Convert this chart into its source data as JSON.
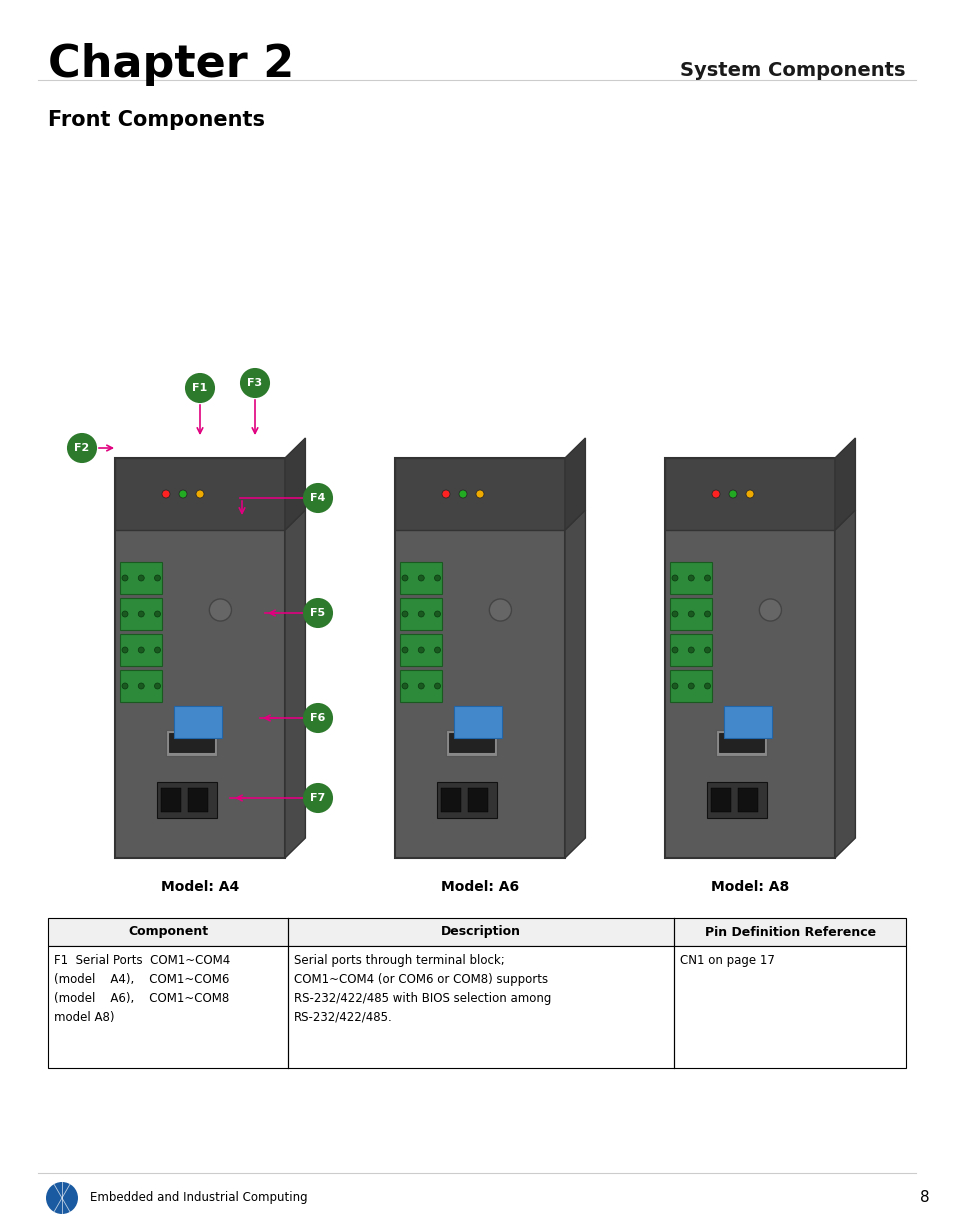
{
  "page_title": "Chapter 2",
  "page_subtitle": "System Components",
  "section_title": "Front Components",
  "bg_color": "#ffffff",
  "title_color": "#000000",
  "subtitle_color": "#1a1a1a",
  "section_color": "#000000",
  "label_bg_color": "#2d7a2d",
  "label_text_color": "#ffffff",
  "arrow_color": "#e0007f",
  "labels": [
    "F1",
    "F2",
    "F3",
    "F4",
    "F5",
    "F6",
    "F7"
  ],
  "model_labels": [
    "Model: A4",
    "Model: A6",
    "Model: A8"
  ],
  "table_header": [
    "Component",
    "Description",
    "Pin Definition Reference"
  ],
  "table_rows": [
    [
      "F1  Serial Ports  COM1~COM4\n(model    A4),    COM1~COM6\n(model    A6),    COM1~COM8\nmodel A8)",
      "Serial ports through terminal block;\nCOM1~COM4 (or COM6 or COM8) supports\nRS-232/422/485 with BIOS selection among\nRS-232/422/485.",
      "CN1 on page 17"
    ]
  ],
  "footer_text": "Embedded and Industrial Computing",
  "page_number": "8",
  "footer_color": "#1a5aa0"
}
